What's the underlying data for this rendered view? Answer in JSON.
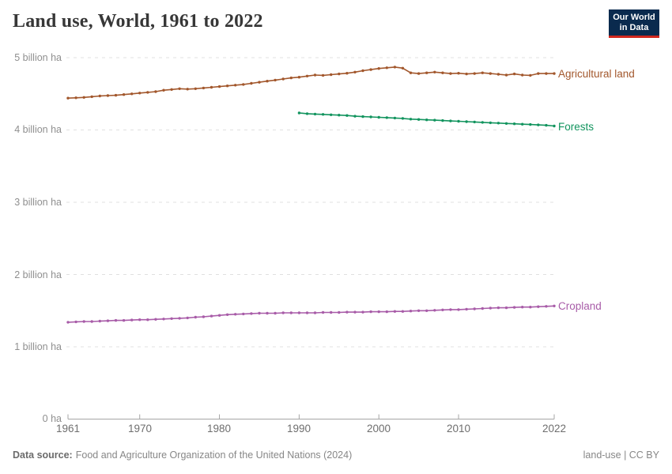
{
  "header": {
    "title": "Land use, World, 1961 to 2022",
    "logo": {
      "line1": "Our World",
      "line2": "in Data",
      "bg": "#0A2A4E",
      "accent": "#D0271D"
    }
  },
  "footer": {
    "source_label": "Data source:",
    "source_text": "Food and Agriculture Organization of the United Nations (2024)",
    "credit": "land-use | CC BY"
  },
  "chart_data": {
    "type": "line",
    "title": "Land use, World, 1961 to 2022",
    "xlabel": "",
    "ylabel": "billion ha",
    "xlim": [
      1961,
      2022
    ],
    "ylim": [
      0,
      5
    ],
    "grid": "horizontal dashed",
    "legend_position": "right-end-labels",
    "x_ticks": [
      "1961",
      "1970",
      "1980",
      "1990",
      "2000",
      "2010",
      "2022"
    ],
    "y_ticks": [
      {
        "value": 5,
        "label": "5 billion ha"
      },
      {
        "value": 4,
        "label": "4 billion ha"
      },
      {
        "value": 3,
        "label": "3 billion ha"
      },
      {
        "value": 2,
        "label": "2 billion ha"
      },
      {
        "value": 1,
        "label": "1 billion ha"
      },
      {
        "value": 0,
        "label": "0 ha"
      }
    ],
    "unit": "billion ha",
    "series": [
      {
        "name": "Agricultural land",
        "color": "#A2572C",
        "start_year": 1961,
        "values": [
          4.44,
          4.445,
          4.45,
          4.46,
          4.47,
          4.475,
          4.48,
          4.49,
          4.5,
          4.51,
          4.52,
          4.53,
          4.55,
          4.56,
          4.57,
          4.565,
          4.57,
          4.58,
          4.59,
          4.6,
          4.61,
          4.62,
          4.63,
          4.645,
          4.66,
          4.675,
          4.69,
          4.705,
          4.72,
          4.73,
          4.745,
          4.76,
          4.755,
          4.765,
          4.775,
          4.785,
          4.8,
          4.82,
          4.835,
          4.85,
          4.86,
          4.87,
          4.855,
          4.79,
          4.78,
          4.79,
          4.8,
          4.79,
          4.78,
          4.785,
          4.775,
          4.78,
          4.79,
          4.78,
          4.77,
          4.76,
          4.775,
          4.76,
          4.755,
          4.78,
          4.78,
          4.78
        ]
      },
      {
        "name": "Forests",
        "color": "#12945E",
        "start_year": 1990,
        "values": [
          4.235,
          4.225,
          4.22,
          4.215,
          4.21,
          4.205,
          4.2,
          4.19,
          4.185,
          4.18,
          4.175,
          4.17,
          4.165,
          4.16,
          4.15,
          4.145,
          4.14,
          4.135,
          4.13,
          4.125,
          4.12,
          4.115,
          4.11,
          4.105,
          4.1,
          4.095,
          4.09,
          4.085,
          4.08,
          4.075,
          4.07,
          4.065,
          4.055
        ]
      },
      {
        "name": "Cropland",
        "color": "#A85CA8",
        "start_year": 1961,
        "values": [
          1.34,
          1.345,
          1.35,
          1.35,
          1.355,
          1.36,
          1.365,
          1.365,
          1.37,
          1.375,
          1.375,
          1.38,
          1.385,
          1.39,
          1.395,
          1.4,
          1.41,
          1.415,
          1.425,
          1.435,
          1.445,
          1.45,
          1.455,
          1.46,
          1.465,
          1.465,
          1.465,
          1.47,
          1.47,
          1.47,
          1.47,
          1.47,
          1.475,
          1.475,
          1.475,
          1.48,
          1.48,
          1.48,
          1.485,
          1.485,
          1.485,
          1.49,
          1.49,
          1.495,
          1.5,
          1.5,
          1.505,
          1.51,
          1.515,
          1.515,
          1.52,
          1.525,
          1.53,
          1.535,
          1.54,
          1.54,
          1.545,
          1.55,
          1.55,
          1.555,
          1.56,
          1.565
        ]
      }
    ]
  }
}
